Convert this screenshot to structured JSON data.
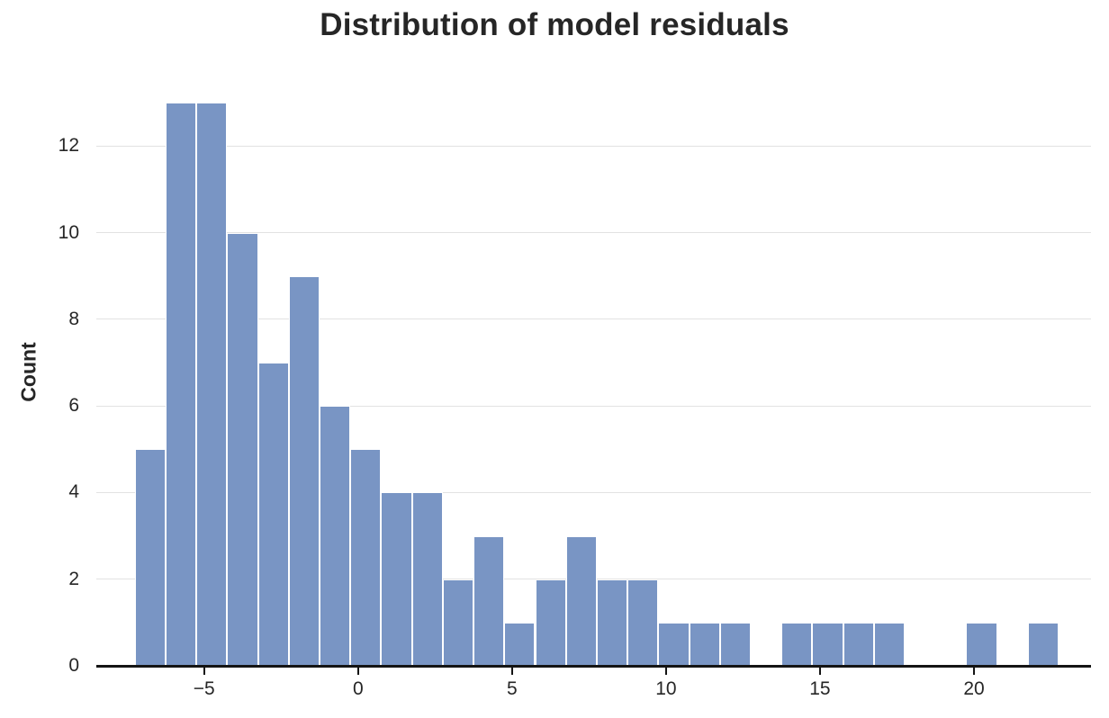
{
  "title": "Distribution of model residuals",
  "chart_data": {
    "type": "bar",
    "subtype": "histogram",
    "title": "Distribution of model residuals",
    "xlabel": "",
    "ylabel": "Count",
    "bin_start": -7.25,
    "bin_width": 1.0,
    "counts": [
      5,
      13,
      13,
      10,
      7,
      9,
      6,
      5,
      4,
      4,
      2,
      3,
      1,
      2,
      3,
      2,
      2,
      1,
      1,
      1,
      0,
      1,
      1,
      1,
      1,
      0,
      0,
      1,
      0,
      1
    ],
    "total_n": 100,
    "xlim": [
      -8.5,
      23.8
    ],
    "ylim": [
      0,
      13.5
    ],
    "xticks": [
      -5,
      0,
      5,
      10,
      15,
      20
    ],
    "xtick_labels": [
      "−5",
      "0",
      "5",
      "10",
      "15",
      "20"
    ],
    "yticks": [
      0,
      2,
      4,
      6,
      8,
      10,
      12
    ],
    "ytick_labels": [
      "0",
      "2",
      "4",
      "6",
      "8",
      "10",
      "12"
    ],
    "grid": "horizontal",
    "legend": "none",
    "bar_color": "#7995c4",
    "bar_edge_color": "#ffffff",
    "axis_color": "#141414",
    "grid_color": "#e2e2e2",
    "text_color": "#262626"
  }
}
